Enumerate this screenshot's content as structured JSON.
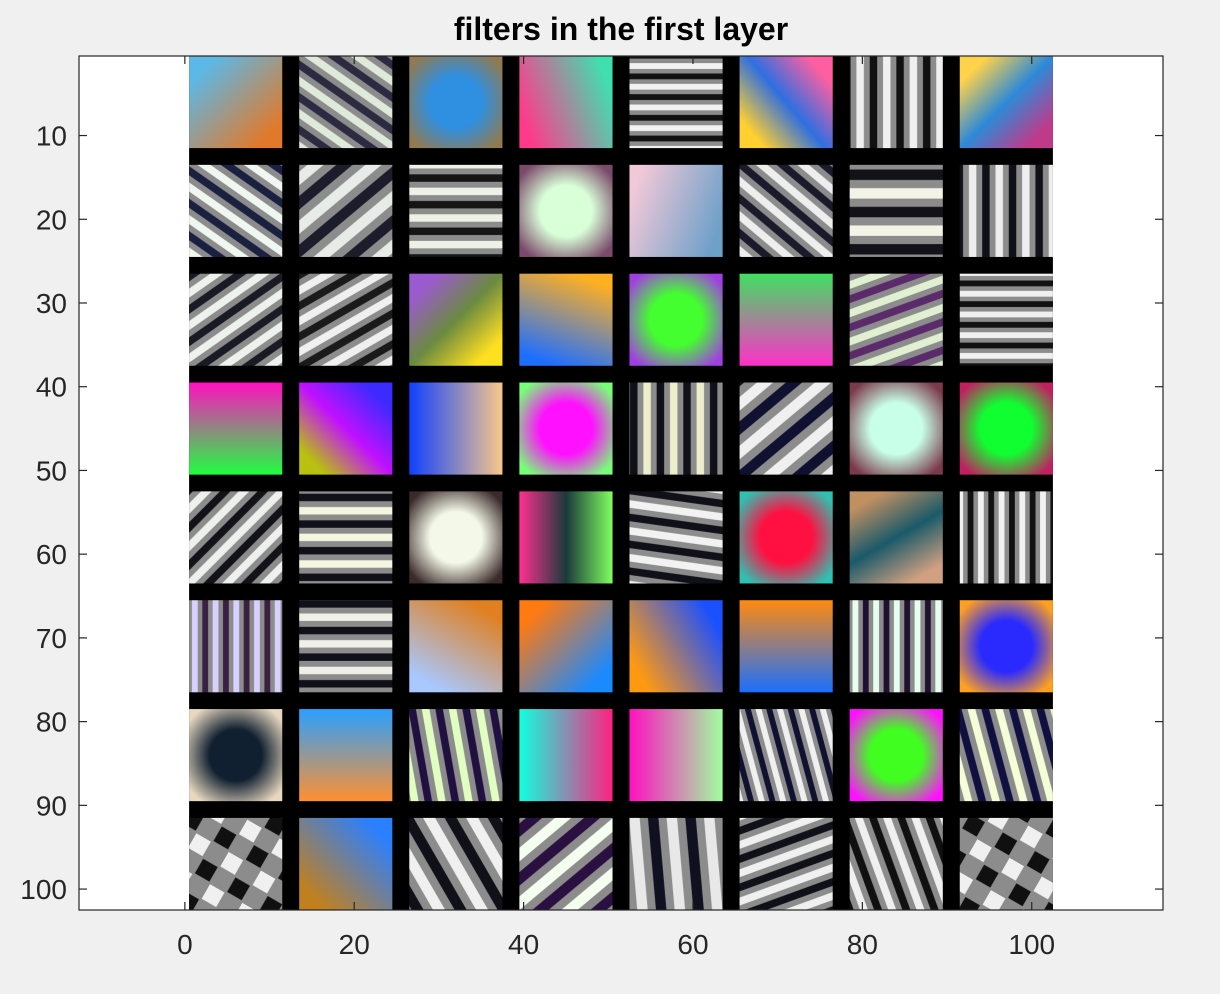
{
  "chart_data": {
    "type": "image",
    "title": "filters in the first layer",
    "xlabel": "",
    "ylabel": "",
    "xlim": [
      -12.5,
      115.5
    ],
    "ylim": [
      102.5,
      0.5
    ],
    "y_reversed": true,
    "xticks": [
      0,
      20,
      40,
      60,
      80,
      100
    ],
    "yticks": [
      10,
      20,
      30,
      40,
      50,
      60,
      70,
      80,
      90,
      100
    ],
    "grid": false,
    "image_extent": {
      "x": [
        0.5,
        102.5
      ],
      "y": [
        0.5,
        102.5
      ]
    },
    "mosaic": {
      "rows": 8,
      "cols": 8,
      "tile_size": 11,
      "gap": 2,
      "background": "#000000",
      "tiles": [
        [
          {
            "kind": "grad",
            "c": [
              "#5cb8e6",
              "#e07a2a"
            ],
            "a": 45
          },
          {
            "kind": "stripes",
            "n": 3,
            "a": 35,
            "c": [
              "#dfeadb",
              "#2b2a40"
            ]
          },
          {
            "kind": "blob",
            "bg": "#8f7a52",
            "c": "#2f8fe0"
          },
          {
            "kind": "grad",
            "c": [
              "#3fe0b0",
              "#ff3a8a"
            ],
            "a": 160
          },
          {
            "kind": "stripes",
            "n": 4,
            "a": 0,
            "c": [
              "#f2f2f2",
              "#111111"
            ]
          },
          {
            "kind": "grad",
            "c": [
              "#ff5fa0",
              "#2f6fe0",
              "#ffd030"
            ],
            "a": 140
          },
          {
            "kind": "stripes",
            "n": 3,
            "a": 90,
            "c": [
              "#f0f0f0",
              "#111111"
            ]
          },
          {
            "kind": "grad",
            "c": [
              "#ffd24a",
              "#2d8ad8",
              "#c03a8a"
            ],
            "a": 45
          }
        ],
        [
          {
            "kind": "stripes",
            "n": 3,
            "a": 35,
            "c": [
              "#f0f6f0",
              "#1a2040"
            ]
          },
          {
            "kind": "stripes",
            "n": 2,
            "a": -40,
            "c": [
              "#e8ece8",
              "#1c1c2a"
            ]
          },
          {
            "kind": "stripes",
            "n": 3,
            "a": 0,
            "c": [
              "#eef2e6",
              "#151515"
            ]
          },
          {
            "kind": "blob",
            "bg": "#7a4a6a",
            "c": "#d8ffd8"
          },
          {
            "kind": "grad",
            "c": [
              "#6ea0c8",
              "#f0c8d8"
            ],
            "a": 200
          },
          {
            "kind": "stripes",
            "n": 3,
            "a": 40,
            "c": [
              "#eeeeee",
              "#1a1a2a"
            ]
          },
          {
            "kind": "stripes",
            "n": 2,
            "a": 0,
            "c": [
              "#f4f4e6",
              "#121218"
            ]
          },
          {
            "kind": "stripes",
            "n": 3,
            "a": 90,
            "c": [
              "#eeeeee",
              "#101018"
            ]
          }
        ],
        [
          {
            "kind": "stripes",
            "n": 3,
            "a": -35,
            "c": [
              "#eef2ee",
              "#1a1a24"
            ]
          },
          {
            "kind": "stripes",
            "n": 3,
            "a": -30,
            "c": [
              "#f0f0f0",
              "#1a1a1a"
            ]
          },
          {
            "kind": "grad",
            "c": [
              "#9c5ad0",
              "#6a8a40",
              "#ffe020"
            ],
            "a": 45
          },
          {
            "kind": "grad",
            "c": [
              "#ffb020",
              "#1f6fff"
            ],
            "a": 110
          },
          {
            "kind": "blob",
            "bg": "#a040e0",
            "c": "#44ff30"
          },
          {
            "kind": "grad",
            "c": [
              "#40e060",
              "#ff30c8"
            ],
            "a": 90
          },
          {
            "kind": "stripes",
            "n": 3,
            "a": -20,
            "c": [
              "#e0f0d0",
              "#5a2a6a"
            ]
          },
          {
            "kind": "stripes",
            "n": 4,
            "a": 0,
            "c": [
              "#f0f0f0",
              "#111111"
            ]
          }
        ],
        [
          {
            "kind": "grad",
            "c": [
              "#ff10c0",
              "#20ff40"
            ],
            "a": 90
          },
          {
            "kind": "grad",
            "c": [
              "#3b2bff",
              "#c010ff",
              "#b8c010"
            ],
            "a": 135
          },
          {
            "kind": "grad",
            "c": [
              "#f8c88a",
              "#1040ff"
            ],
            "a": 180
          },
          {
            "kind": "blob",
            "bg": "#78ff78",
            "c": "#ff10ff"
          },
          {
            "kind": "stripes",
            "n": 3,
            "a": 90,
            "c": [
              "#eeeecc",
              "#101018"
            ]
          },
          {
            "kind": "stripes",
            "n": 2,
            "a": -40,
            "c": [
              "#f0f0f0",
              "#101030"
            ]
          },
          {
            "kind": "blob",
            "bg": "#7a3a4a",
            "c": "#c8ffe8"
          },
          {
            "kind": "blob",
            "bg": "#c02060",
            "c": "#10ff30"
          }
        ],
        [
          {
            "kind": "stripes",
            "n": 3,
            "a": -45,
            "c": [
              "#eef0ee",
              "#121218"
            ]
          },
          {
            "kind": "stripes",
            "n": 3,
            "a": 0,
            "c": [
              "#f4f6e0",
              "#101018"
            ]
          },
          {
            "kind": "blob",
            "bg": "#3a2a2a",
            "c": "#f4f8e8"
          },
          {
            "kind": "grad",
            "c": [
              "#80ff60",
              "#1a3a3a",
              "#ff3090"
            ],
            "a": 180
          },
          {
            "kind": "stripes",
            "n": 3,
            "a": 8,
            "c": [
              "#f2f2f2",
              "#101018"
            ]
          },
          {
            "kind": "blob",
            "bg": "#30c0b0",
            "c": "#ff1040"
          },
          {
            "kind": "grad",
            "c": [
              "#c09060",
              "#1a5a6a",
              "#d0a080"
            ],
            "a": 60
          },
          {
            "kind": "stripes",
            "n": 4,
            "a": 90,
            "c": [
              "#f2f2f2",
              "#111111"
            ]
          }
        ],
        [
          {
            "kind": "stripes",
            "n": 4,
            "a": 90,
            "c": [
              "#d8d0ff",
              "#3a2040"
            ]
          },
          {
            "kind": "stripes",
            "n": 3,
            "a": 0,
            "c": [
              "#f0f0e8",
              "#101018"
            ]
          },
          {
            "kind": "grad",
            "c": [
              "#e08020",
              "#a8c8ff"
            ],
            "a": 120
          },
          {
            "kind": "grad",
            "c": [
              "#ff7a10",
              "#1a8aff"
            ],
            "a": 45
          },
          {
            "kind": "grad",
            "c": [
              "#1a50ff",
              "#ff9a10"
            ],
            "a": 150
          },
          {
            "kind": "grad",
            "c": [
              "#ff8a10",
              "#1a70ff"
            ],
            "a": 90
          },
          {
            "kind": "stripes",
            "n": 4,
            "a": 90,
            "c": [
              "#e8fff0",
              "#201030"
            ]
          },
          {
            "kind": "blob",
            "bg": "#ffa020",
            "c": "#2a2aff"
          }
        ],
        [
          {
            "kind": "blob",
            "bg": "#e8d8c0",
            "c": "#102030"
          },
          {
            "kind": "grad",
            "c": [
              "#2aa0ff",
              "#ff9030"
            ],
            "a": 90
          },
          {
            "kind": "stripes",
            "n": 3,
            "a": 80,
            "c": [
              "#e0ffc0",
              "#201040"
            ]
          },
          {
            "kind": "grad",
            "c": [
              "#ff2080",
              "#10ffe0"
            ],
            "a": 180
          },
          {
            "kind": "grad",
            "c": [
              "#a0ffa0",
              "#ff10c0"
            ],
            "a": 180
          },
          {
            "kind": "stripes",
            "n": 4,
            "a": 75,
            "c": [
              "#f0f0f0",
              "#101030"
            ]
          },
          {
            "kind": "blob",
            "bg": "#ff10ff",
            "c": "#40ff20"
          },
          {
            "kind": "stripes",
            "n": 3,
            "a": 75,
            "c": [
              "#f4ffd8",
              "#101040"
            ]
          }
        ],
        [
          {
            "kind": "checker",
            "n": 5,
            "c": [
              "#f0f0f0",
              "#101010"
            ]
          },
          {
            "kind": "grad",
            "c": [
              "#2a80ff",
              "#c08020"
            ],
            "a": 135
          },
          {
            "kind": "stripes",
            "n": 2,
            "a": 60,
            "c": [
              "#f0f0f0",
              "#101018"
            ]
          },
          {
            "kind": "stripes",
            "n": 2,
            "a": -40,
            "c": [
              "#f4fff0",
              "#2a1040"
            ]
          },
          {
            "kind": "stripes",
            "n": 2,
            "a": 85,
            "c": [
              "#e8e8e8",
              "#101020"
            ]
          },
          {
            "kind": "stripes",
            "n": 3,
            "a": -20,
            "c": [
              "#f0f0f0",
              "#101018"
            ]
          },
          {
            "kind": "stripes",
            "n": 3,
            "a": 70,
            "c": [
              "#f0f0f0",
              "#101010"
            ]
          },
          {
            "kind": "checker",
            "n": 5,
            "c": [
              "#f0f0f0",
              "#101010"
            ]
          }
        ]
      ]
    }
  }
}
